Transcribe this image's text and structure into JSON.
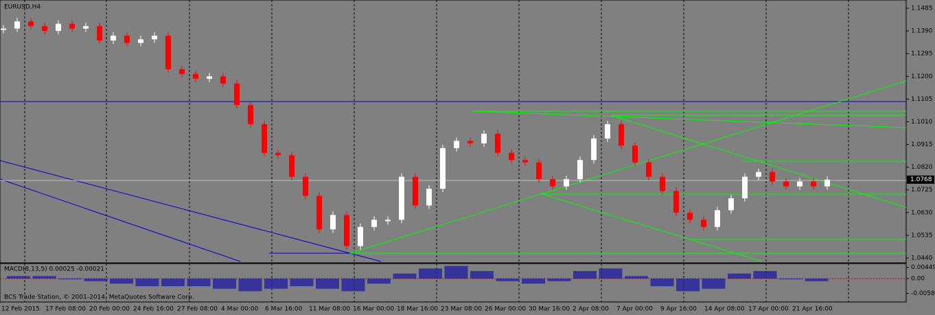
{
  "chart_data": {
    "type": "candlestick",
    "title": "EURUSD,H4",
    "closes": [
      1.14,
      1.143,
      1.141,
      1.139,
      1.142,
      1.14,
      1.141,
      1.135,
      1.137,
      1.134,
      1.1355,
      1.137,
      1.123,
      1.121,
      1.119,
      1.12,
      1.117,
      1.108,
      1.1,
      1.088,
      1.087,
      1.078,
      1.07,
      1.056,
      1.062,
      1.049,
      1.057,
      1.06,
      1.06,
      1.078,
      1.066,
      1.073,
      1.09,
      1.093,
      1.092,
      1.096,
      1.088,
      1.085,
      1.084,
      1.077,
      1.074,
      1.077,
      1.085,
      1.094,
      1.1,
      1.091,
      1.084,
      1.078,
      1.072,
      1.063,
      1.06,
      1.057,
      1.064,
      1.069,
      1.078,
      1.08,
      1.076,
      1.074,
      1.076,
      1.074,
      1.0768
    ],
    "ylim": [
      1.044,
      1.1485
    ],
    "yticks": [
      1.1485,
      {
        "value": 1.139,
        "label": "1.1390"
      },
      1.1295,
      {
        "value": 1.12,
        "label": "1.1200"
      },
      1.1105,
      {
        "value": 1.101,
        "label": "1.1010"
      },
      1.0915,
      {
        "value": 1.082,
        "label": "1.0820"
      },
      1.0725,
      {
        "value": 1.063,
        "label": "1.0630"
      },
      1.0535,
      {
        "value": 1.044,
        "label": "1.0440"
      }
    ],
    "current_price": 1.0768,
    "x_labels": [
      "12 Feb 2015",
      "17 Feb 08:00",
      "20 Feb 00:00",
      "24 Feb 16:00",
      "27 Feb 08:00",
      "4 Mar 00:00",
      "6 Mar 16:00",
      "11 Mar 08:00",
      "16 Mar 00:00",
      "18 Mar 16:00",
      "23 Mar 08:00",
      "26 Mar 00:00",
      "30 Mar 16:00",
      "2 Apr 08:00",
      "7 Apr 00:00",
      "9 Apr 16:00",
      "14 Apr 08:00",
      "17 Apr 00:00",
      "21 Apr 16:00"
    ],
    "macd": {
      "label": "MACD(8,13,5) 0.00025 -0.00021",
      "values": [
        0.001,
        0.001,
        0,
        -0.001,
        -0.002,
        -0.003,
        -0.003,
        -0.003,
        -0.004,
        -0.005,
        -0.004,
        -0.003,
        -0.004,
        -0.005,
        -0.002,
        0.002,
        0.004,
        0.005,
        0.003,
        -0.001,
        -0.002,
        -0.001,
        0.003,
        0.004,
        0.001,
        -0.003,
        -0.005,
        -0.004,
        0.002,
        0.003,
        0,
        -0.001
      ],
      "ylim": [
        -0.00583,
        0.00449
      ],
      "yticks": [
        0.00449,
        {
          "value": 0,
          "label": "0.00"
        },
        -0.00583
      ]
    },
    "copyright": "BCS Trade Station, © 2001-2014, MetaQuotes Software Corp."
  }
}
